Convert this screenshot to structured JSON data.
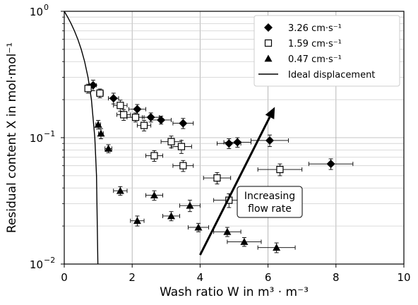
{
  "chart_data": {
    "type": "scatter",
    "xlabel": "Wash ratio W in m³ · m⁻³",
    "ylabel": "Residual content X in mol·mol⁻¹",
    "xlim": [
      0,
      10
    ],
    "ylim": [
      0.01,
      1
    ],
    "yscale": "log",
    "grid": "both, including minor y",
    "x_ticks": [
      0,
      2,
      4,
      6,
      8,
      10
    ],
    "y_ticks": [
      {
        "value": 0.01,
        "base": "10",
        "exp": "−2"
      },
      {
        "value": 0.1,
        "base": "10",
        "exp": "−1"
      },
      {
        "value": 1,
        "base": "10",
        "exp": "0"
      }
    ],
    "legend_position": "top-right",
    "series": [
      {
        "name": "3.26 cm·s⁻¹",
        "marker": "diamond",
        "points": [
          {
            "x": 0.85,
            "y": 0.26,
            "xerr": 0.1,
            "yerr": 0.025
          },
          {
            "x": 1.45,
            "y": 0.205,
            "xerr": 0.15,
            "yerr": 0.02
          },
          {
            "x": 2.15,
            "y": 0.168,
            "xerr": 0.25,
            "yerr": 0.015
          },
          {
            "x": 2.55,
            "y": 0.145,
            "xerr": 0.25,
            "yerr": 0.012
          },
          {
            "x": 2.85,
            "y": 0.138,
            "xerr": 0.3,
            "yerr": 0.01
          },
          {
            "x": 3.5,
            "y": 0.13,
            "xerr": 0.3,
            "yerr": 0.012
          },
          {
            "x": 4.85,
            "y": 0.09,
            "xerr": 0.35,
            "yerr": 0.008
          },
          {
            "x": 5.1,
            "y": 0.092,
            "xerr": 0.4,
            "yerr": 0.008
          },
          {
            "x": 6.05,
            "y": 0.095,
            "xerr": 0.55,
            "yerr": 0.01
          },
          {
            "x": 7.85,
            "y": 0.062,
            "xerr": 0.65,
            "yerr": 0.006
          }
        ]
      },
      {
        "name": "1.59 cm·s⁻¹",
        "marker": "square-open",
        "points": [
          {
            "x": 0.7,
            "y": 0.245,
            "xerr": 0.08,
            "yerr": 0.02
          },
          {
            "x": 1.05,
            "y": 0.225,
            "xerr": 0.1,
            "yerr": 0.018
          },
          {
            "x": 1.65,
            "y": 0.18,
            "xerr": 0.2,
            "yerr": 0.018
          },
          {
            "x": 1.75,
            "y": 0.152,
            "xerr": 0.2,
            "yerr": 0.015
          },
          {
            "x": 2.1,
            "y": 0.145,
            "xerr": 0.25,
            "yerr": 0.012
          },
          {
            "x": 2.35,
            "y": 0.125,
            "xerr": 0.2,
            "yerr": 0.012
          },
          {
            "x": 3.15,
            "y": 0.093,
            "xerr": 0.3,
            "yerr": 0.01
          },
          {
            "x": 3.45,
            "y": 0.085,
            "xerr": 0.3,
            "yerr": 0.01
          },
          {
            "x": 2.65,
            "y": 0.072,
            "xerr": 0.25,
            "yerr": 0.007
          },
          {
            "x": 3.5,
            "y": 0.06,
            "xerr": 0.3,
            "yerr": 0.006
          },
          {
            "x": 4.5,
            "y": 0.048,
            "xerr": 0.4,
            "yerr": 0.005
          },
          {
            "x": 6.35,
            "y": 0.056,
            "xerr": 0.65,
            "yerr": 0.006
          },
          {
            "x": 4.85,
            "y": 0.032,
            "xerr": 0.45,
            "yerr": 0.004
          }
        ]
      },
      {
        "name": "0.47 cm·s⁻¹",
        "marker": "triangle",
        "points": [
          {
            "x": 1.0,
            "y": 0.127,
            "xerr": 0.07,
            "yerr": 0.01
          },
          {
            "x": 1.08,
            "y": 0.108,
            "xerr": 0.07,
            "yerr": 0.01
          },
          {
            "x": 1.3,
            "y": 0.082,
            "xerr": 0.1,
            "yerr": 0.006
          },
          {
            "x": 1.65,
            "y": 0.038,
            "xerr": 0.2,
            "yerr": 0.003
          },
          {
            "x": 2.65,
            "y": 0.035,
            "xerr": 0.25,
            "yerr": 0.003
          },
          {
            "x": 3.7,
            "y": 0.029,
            "xerr": 0.3,
            "yerr": 0.003
          },
          {
            "x": 2.15,
            "y": 0.022,
            "xerr": 0.2,
            "yerr": 0.002
          },
          {
            "x": 3.15,
            "y": 0.024,
            "xerr": 0.25,
            "yerr": 0.002
          },
          {
            "x": 3.95,
            "y": 0.0195,
            "xerr": 0.3,
            "yerr": 0.0015
          },
          {
            "x": 4.8,
            "y": 0.018,
            "xerr": 0.4,
            "yerr": 0.0015
          },
          {
            "x": 5.3,
            "y": 0.015,
            "xerr": 0.5,
            "yerr": 0.0012
          },
          {
            "x": 6.25,
            "y": 0.0135,
            "xerr": 0.55,
            "yerr": 0.0012
          }
        ]
      },
      {
        "name": "Ideal displacement",
        "marker": "line",
        "points": [
          {
            "x": 0,
            "y": 1
          },
          {
            "x": 0.1,
            "y": 0.9
          },
          {
            "x": 0.2,
            "y": 0.8
          },
          {
            "x": 0.3,
            "y": 0.7
          },
          {
            "x": 0.4,
            "y": 0.6
          },
          {
            "x": 0.5,
            "y": 0.5
          },
          {
            "x": 0.6,
            "y": 0.4
          },
          {
            "x": 0.7,
            "y": 0.3
          },
          {
            "x": 0.8,
            "y": 0.2
          },
          {
            "x": 0.9,
            "y": 0.1
          },
          {
            "x": 0.95,
            "y": 0.05
          },
          {
            "x": 0.99,
            "y": 0.01
          }
        ]
      }
    ],
    "annotations": [
      {
        "type": "arrow",
        "from": {
          "x": 4.0,
          "y": 0.0118
        },
        "to": {
          "x": 6.2,
          "y": 0.175
        }
      },
      {
        "type": "text",
        "lines": [
          "Increasing",
          "flow rate"
        ],
        "anchor": {
          "x": 6.05,
          "y": 0.031
        }
      }
    ]
  }
}
